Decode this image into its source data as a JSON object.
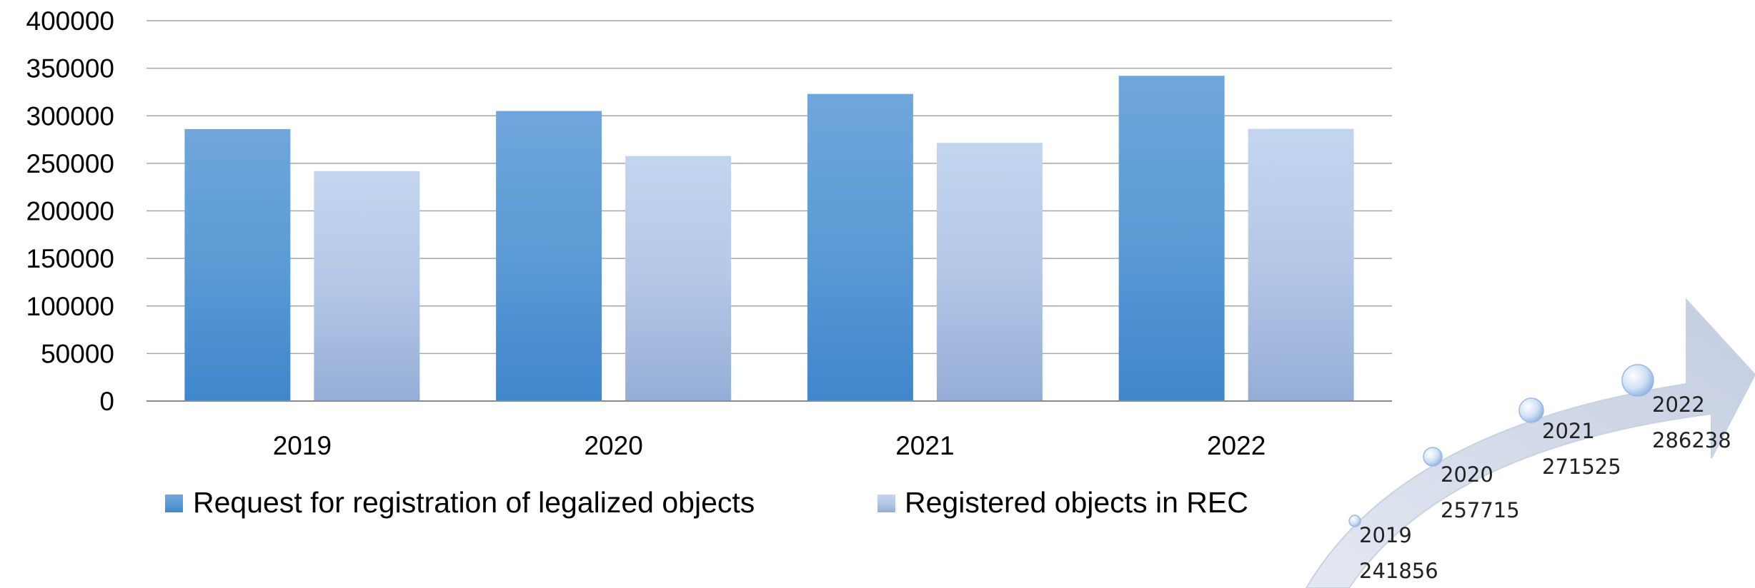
{
  "chart_data": [
    {
      "type": "bar",
      "categories": [
        "2019",
        "2020",
        "2021",
        "2022"
      ],
      "series": [
        {
          "name": "Request for registration of legalized objects",
          "values": [
            286000,
            305000,
            323000,
            342000
          ]
        },
        {
          "name": "Registered objects in REC",
          "values": [
            241856,
            257715,
            271525,
            286238
          ]
        }
      ],
      "ylim": [
        0,
        400000
      ],
      "yticks": [
        "0",
        "50000",
        "100000",
        "150000",
        "200000",
        "250000",
        "300000",
        "350000",
        "400000"
      ],
      "grid": true,
      "legend_position": "bottom",
      "colors": {
        "series_1": "#5b9bd5",
        "series_2": "#b4c7e7",
        "gridline": "#a6a6a6"
      }
    },
    {
      "type": "scatter",
      "description_style": "curved-arrow-timeline",
      "points": [
        {
          "year": "2019",
          "value": "241856"
        },
        {
          "year": "2020",
          "value": "257715"
        },
        {
          "year": "2021",
          "value": "271525"
        },
        {
          "year": "2022",
          "value": "286238"
        }
      ]
    }
  ]
}
